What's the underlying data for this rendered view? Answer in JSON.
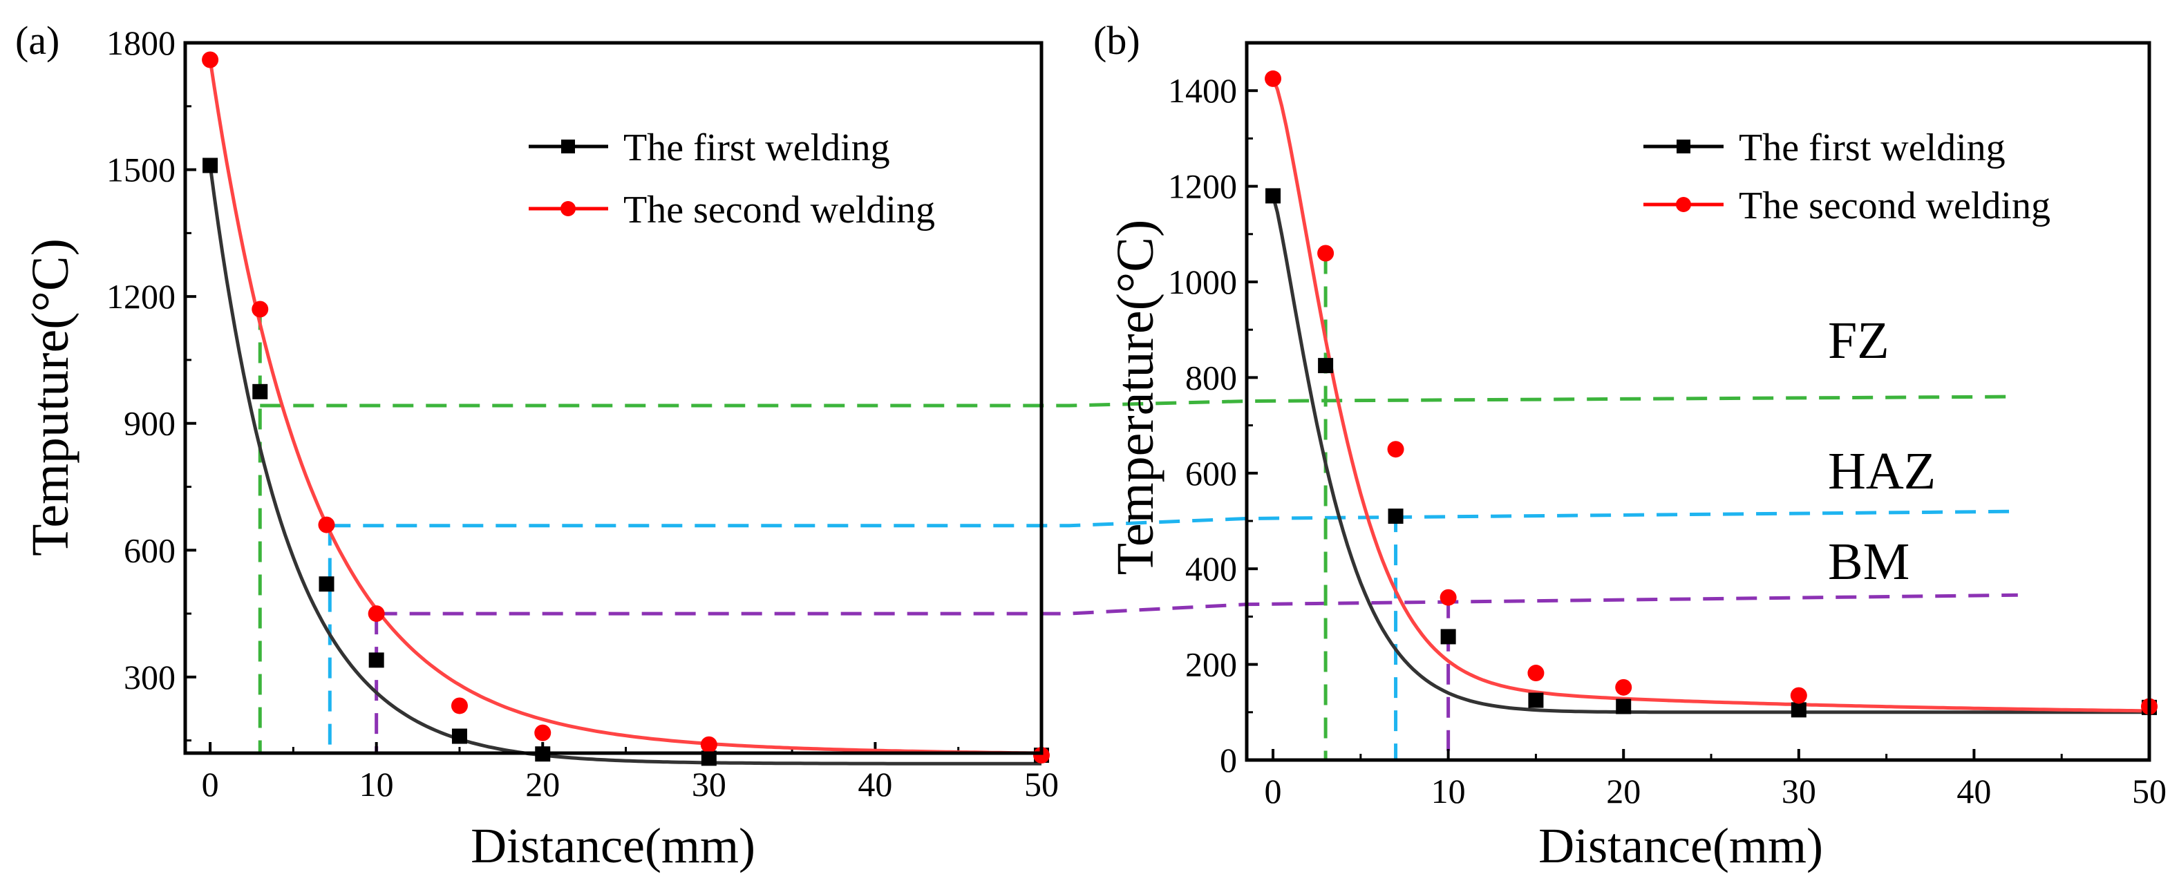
{
  "colors": {
    "first": "#000000",
    "second": "#ff0000",
    "fit_first": "#333333",
    "fit_second": "#ff4444",
    "fz_line": "#3cb43c",
    "haz_line": "#1eb4f0",
    "bm_line": "#8c32b4"
  },
  "chart_data": [
    {
      "type": "line",
      "panel_label": "(a)",
      "xlabel": "Distance(mm)",
      "ylabel": "Temputure(°C)",
      "xlim": [
        -1.5,
        50
      ],
      "ylim": [
        120,
        1800
      ],
      "x_ticks": [
        "0",
        "10",
        "20",
        "30",
        "40",
        "50"
      ],
      "x_tick_values": [
        0,
        10,
        20,
        30,
        40,
        50
      ],
      "y_ticks": [
        "300",
        "600",
        "900",
        "1200",
        "1500",
        "1800"
      ],
      "y_tick_values": [
        300,
        600,
        900,
        1200,
        1500,
        1800
      ],
      "legend_position": "top-right",
      "series": [
        {
          "name": "The first welding",
          "marker": "square",
          "x": [
            0,
            3,
            7,
            10,
            15,
            20,
            30,
            50
          ],
          "values": [
            1510,
            975,
            520,
            340,
            160,
            118,
            108,
            115
          ],
          "fit": {
            "start": 1510,
            "asymptote": 95,
            "rate": 0.213
          }
        },
        {
          "name": "The second welding",
          "marker": "circle",
          "x": [
            0,
            3,
            7,
            10,
            15,
            20,
            30,
            50
          ],
          "values": [
            1760,
            1170,
            660,
            450,
            232,
            168,
            140,
            115
          ],
          "fit": {
            "start": 1760,
            "asymptote": 110,
            "rate": 0.165,
            "tail_amp": 70,
            "tail_rate": 0.04
          }
        }
      ],
      "reference_lines": {
        "horizontal": [
          {
            "zone": "FZ",
            "y": 942
          },
          {
            "zone": "HAZ",
            "y": 658
          },
          {
            "zone": "BM",
            "y": 450
          }
        ],
        "vertical": [
          {
            "zone": "FZ",
            "x": 3,
            "y_top": 1170
          },
          {
            "zone": "HAZ",
            "x": 7.2,
            "y_top": 660
          },
          {
            "zone": "BM",
            "x": 10,
            "y_top": 450
          }
        ]
      }
    },
    {
      "type": "line",
      "panel_label": "(b)",
      "xlabel": "Distance(mm)",
      "ylabel": "Temperature(°C)",
      "xlim": [
        -1.5,
        50
      ],
      "ylim": [
        0,
        1500
      ],
      "x_ticks": [
        "0",
        "10",
        "20",
        "30",
        "40",
        "50"
      ],
      "x_tick_values": [
        0,
        10,
        20,
        30,
        40,
        50
      ],
      "y_ticks": [
        "0",
        "200",
        "400",
        "600",
        "800",
        "1000",
        "1200",
        "1400"
      ],
      "y_tick_values": [
        0,
        200,
        400,
        600,
        800,
        1000,
        1200,
        1400
      ],
      "legend_position": "top-right",
      "zone_labels": [
        "FZ",
        "HAZ",
        "BM"
      ],
      "series": [
        {
          "name": "The first welding",
          "marker": "square",
          "x": [
            0,
            3,
            7,
            10,
            15,
            20,
            30,
            50
          ],
          "values": [
            1180,
            825,
            510,
            258,
            125,
            112,
            105,
            110
          ],
          "fit": {
            "start": 1180,
            "asymptote": 100,
            "rate": 0.185,
            "power": 1.25
          }
        },
        {
          "name": "The second welding",
          "marker": "circle",
          "x": [
            0,
            3,
            7,
            10,
            15,
            20,
            30,
            50
          ],
          "values": [
            1425,
            1060,
            650,
            340,
            182,
            152,
            135,
            112
          ],
          "fit": {
            "start": 1425,
            "asymptote": 92,
            "rate": 0.12,
            "power": 1.4,
            "tail_amp": 80,
            "tail_rate": 0.04
          }
        }
      ],
      "reference_lines": {
        "horizontal": [
          {
            "zone": "FZ",
            "y": 760
          },
          {
            "zone": "HAZ",
            "y": 520
          },
          {
            "zone": "BM",
            "y": 345
          }
        ],
        "vertical": [
          {
            "zone": "FZ",
            "x": 3,
            "y_top": 1060
          },
          {
            "zone": "HAZ",
            "x": 7,
            "y_top": 520
          },
          {
            "zone": "BM",
            "x": 10,
            "y_top": 340
          }
        ]
      }
    }
  ]
}
